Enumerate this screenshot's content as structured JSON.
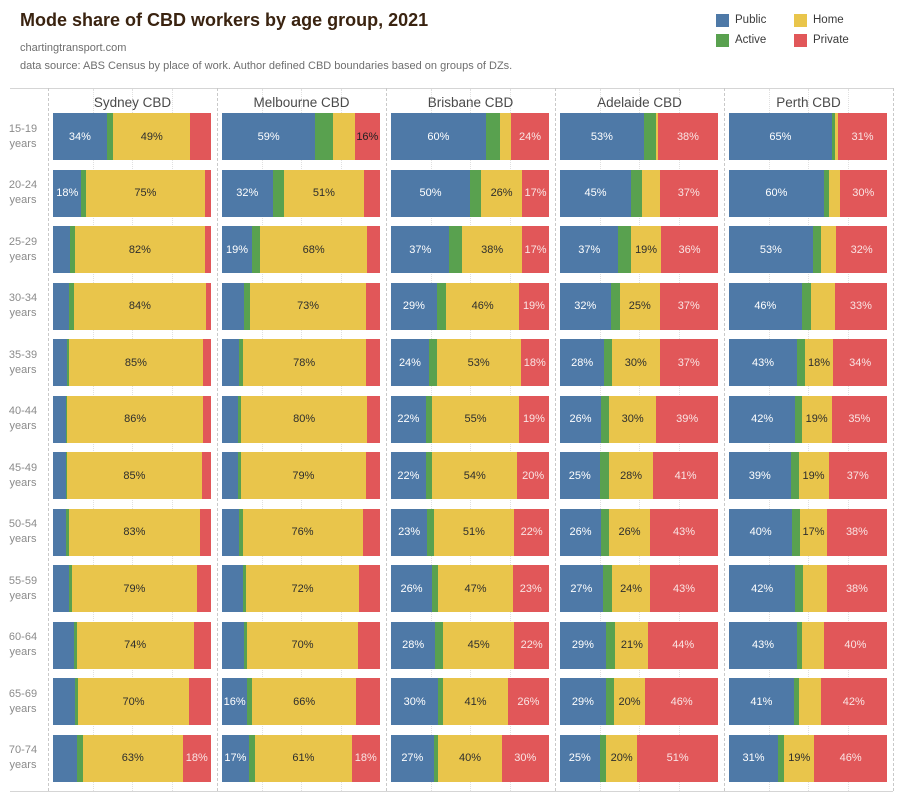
{
  "header": {
    "title": "Mode share of CBD workers by age group, 2021",
    "subtitle": "chartingtransport.com",
    "source": "data source: ABS Census by place of work. Author defined CBD boundaries based on groups of DZs."
  },
  "legend": {
    "items": [
      {
        "label": "Public",
        "color": "#4e79a7"
      },
      {
        "label": "Home",
        "color": "#e9c54b"
      },
      {
        "label": "Active",
        "color": "#59a14f"
      },
      {
        "label": "Private",
        "color": "#e15759"
      }
    ]
  },
  "colors": {
    "public": "#4e79a7",
    "active": "#59a14f",
    "home": "#e9c54b",
    "private": "#e15759",
    "label_on_dark": "#ffffff",
    "label_on_home": "#2e2e2e",
    "label_on_private": "#f9e4e4",
    "title": "#3a2310",
    "gridline": "#e0e0e0"
  },
  "chart_data": {
    "type": "bar",
    "stacked": true,
    "orientation": "horizontal",
    "unit": "%",
    "title": "Mode share of CBD workers by age group, 2021",
    "series_order": [
      "Public",
      "Active",
      "Home",
      "Private"
    ],
    "columns": [
      "Sydney CBD",
      "Melbourne CBD",
      "Brisbane CBD",
      "Adelaide CBD",
      "Perth CBD"
    ],
    "x_axis": {
      "min": 0,
      "max": 100,
      "gridlines_pct": [
        25,
        50,
        75
      ]
    },
    "label_rule": "segment percentage labels are shown only when value >= 16",
    "age_unit": "years",
    "rows": [
      {
        "age_range": "15-19",
        "values": [
          [
            34,
            4,
            49,
            13
          ],
          [
            59,
            11,
            14,
            16
          ],
          [
            60,
            9,
            7,
            24
          ],
          [
            53,
            8,
            1,
            38
          ],
          [
            65,
            2,
            2,
            31
          ]
        ]
      },
      {
        "age_range": "20-24",
        "values": [
          [
            18,
            3,
            75,
            4
          ],
          [
            32,
            7,
            51,
            10
          ],
          [
            50,
            7,
            26,
            17
          ],
          [
            45,
            7,
            11,
            37
          ],
          [
            60,
            3,
            7,
            30
          ]
        ]
      },
      {
        "age_range": "25-29",
        "values": [
          [
            11,
            3,
            82,
            4
          ],
          [
            19,
            5,
            68,
            8
          ],
          [
            37,
            8,
            38,
            17
          ],
          [
            37,
            8,
            19,
            36
          ],
          [
            53,
            5,
            10,
            32
          ]
        ]
      },
      {
        "age_range": "30-34",
        "values": [
          [
            10,
            3,
            84,
            3
          ],
          [
            14,
            4,
            73,
            9
          ],
          [
            29,
            6,
            46,
            19
          ],
          [
            32,
            6,
            25,
            37
          ],
          [
            46,
            6,
            15,
            33
          ]
        ]
      },
      {
        "age_range": "35-39",
        "values": [
          [
            9,
            1,
            85,
            5
          ],
          [
            11,
            2,
            78,
            9
          ],
          [
            24,
            5,
            53,
            18
          ],
          [
            28,
            5,
            30,
            37
          ],
          [
            43,
            5,
            18,
            34
          ]
        ]
      },
      {
        "age_range": "40-44",
        "values": [
          [
            8,
            1,
            86,
            5
          ],
          [
            10,
            2,
            80,
            8
          ],
          [
            22,
            4,
            55,
            19
          ],
          [
            26,
            5,
            30,
            39
          ],
          [
            42,
            4,
            19,
            35
          ]
        ]
      },
      {
        "age_range": "45-49",
        "values": [
          [
            8,
            1,
            85,
            6
          ],
          [
            10,
            2,
            79,
            9
          ],
          [
            22,
            4,
            54,
            20
          ],
          [
            25,
            6,
            28,
            41
          ],
          [
            39,
            5,
            19,
            37
          ]
        ]
      },
      {
        "age_range": "50-54",
        "values": [
          [
            8,
            2,
            83,
            7
          ],
          [
            11,
            2,
            76,
            11
          ],
          [
            23,
            4,
            51,
            22
          ],
          [
            26,
            5,
            26,
            43
          ],
          [
            40,
            5,
            17,
            38
          ]
        ]
      },
      {
        "age_range": "55-59",
        "values": [
          [
            10,
            2,
            79,
            9
          ],
          [
            13,
            2,
            72,
            13
          ],
          [
            26,
            4,
            47,
            23
          ],
          [
            27,
            6,
            24,
            43
          ],
          [
            42,
            5,
            15,
            38
          ]
        ]
      },
      {
        "age_range": "60-64",
        "values": [
          [
            13,
            2,
            74,
            11
          ],
          [
            14,
            2,
            70,
            14
          ],
          [
            28,
            5,
            45,
            22
          ],
          [
            29,
            6,
            21,
            44
          ],
          [
            43,
            3,
            14,
            40
          ]
        ]
      },
      {
        "age_range": "65-69",
        "values": [
          [
            14,
            2,
            70,
            14
          ],
          [
            16,
            3,
            66,
            15
          ],
          [
            30,
            3,
            41,
            26
          ],
          [
            29,
            5,
            20,
            46
          ],
          [
            41,
            3,
            14,
            42
          ]
        ]
      },
      {
        "age_range": "70-74",
        "values": [
          [
            15,
            4,
            63,
            18
          ],
          [
            17,
            4,
            61,
            18
          ],
          [
            27,
            3,
            40,
            30
          ],
          [
            25,
            4,
            20,
            51
          ],
          [
            31,
            4,
            19,
            46
          ]
        ]
      }
    ]
  }
}
